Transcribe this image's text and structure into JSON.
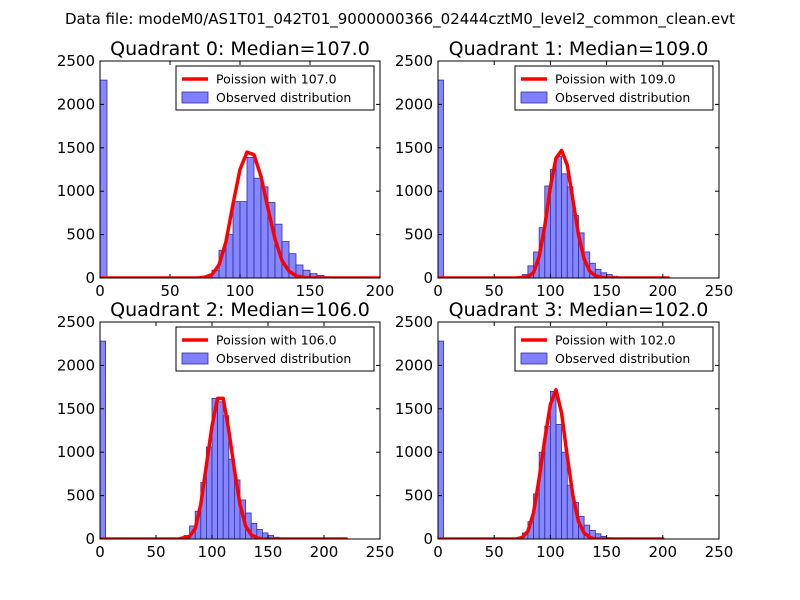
{
  "figure_title": "Data file: modeM0/AS1T01_042T01_9000000366_02444cztM0_level2_common_clean.evt",
  "colors": {
    "hist_fill": "#7f7fff",
    "hist_edge": "#2f2f9f",
    "poisson_line": "#ff0000",
    "axes": "#000000"
  },
  "chart_data": [
    {
      "type": "bar+line",
      "title": "Quadrant 0: Median=107.0",
      "xlim": [
        0,
        200
      ],
      "ylim": [
        0,
        2500
      ],
      "xticks": [
        0,
        50,
        100,
        150,
        200
      ],
      "yticks": [
        0,
        500,
        1000,
        1500,
        2000,
        2500
      ],
      "legend_location": "top-right",
      "legend": {
        "line_label": "Poission with 107.0",
        "hist_label": "Observed distribution"
      },
      "bin_width": 5,
      "bins": [
        {
          "x": 0,
          "y": 2280
        },
        {
          "x": 75,
          "y": 20
        },
        {
          "x": 80,
          "y": 90
        },
        {
          "x": 85,
          "y": 320
        },
        {
          "x": 90,
          "y": 500
        },
        {
          "x": 95,
          "y": 880
        },
        {
          "x": 100,
          "y": 880
        },
        {
          "x": 105,
          "y": 1390
        },
        {
          "x": 110,
          "y": 1150
        },
        {
          "x": 115,
          "y": 1050
        },
        {
          "x": 120,
          "y": 870
        },
        {
          "x": 125,
          "y": 620
        },
        {
          "x": 130,
          "y": 420
        },
        {
          "x": 135,
          "y": 280
        },
        {
          "x": 140,
          "y": 150
        },
        {
          "x": 145,
          "y": 90
        },
        {
          "x": 150,
          "y": 50
        },
        {
          "x": 155,
          "y": 30
        },
        {
          "x": 160,
          "y": 15
        },
        {
          "x": 165,
          "y": 8
        }
      ],
      "poisson": {
        "x": [
          0,
          70,
          75,
          80,
          85,
          90,
          95,
          100,
          105,
          110,
          115,
          120,
          125,
          130,
          135,
          140,
          145,
          150,
          200
        ],
        "y": [
          0,
          0,
          10,
          40,
          150,
          420,
          850,
          1250,
          1450,
          1420,
          1170,
          800,
          450,
          200,
          80,
          25,
          8,
          0,
          0
        ]
      }
    },
    {
      "type": "bar+line",
      "title": "Quadrant 1: Median=109.0",
      "xlim": [
        0,
        250
      ],
      "ylim": [
        0,
        2500
      ],
      "xticks": [
        0,
        50,
        100,
        150,
        200,
        250
      ],
      "yticks": [
        0,
        500,
        1000,
        1500,
        2000,
        2500
      ],
      "legend_location": "top-right",
      "legend": {
        "line_label": "Poission with 109.0",
        "hist_label": "Observed distribution"
      },
      "bin_width": 5,
      "bins": [
        {
          "x": 0,
          "y": 2280
        },
        {
          "x": 75,
          "y": 40
        },
        {
          "x": 80,
          "y": 140
        },
        {
          "x": 85,
          "y": 300
        },
        {
          "x": 90,
          "y": 580
        },
        {
          "x": 95,
          "y": 1060
        },
        {
          "x": 100,
          "y": 1250
        },
        {
          "x": 105,
          "y": 1400
        },
        {
          "x": 110,
          "y": 1200
        },
        {
          "x": 115,
          "y": 1050
        },
        {
          "x": 120,
          "y": 720
        },
        {
          "x": 125,
          "y": 520
        },
        {
          "x": 130,
          "y": 300
        },
        {
          "x": 135,
          "y": 170
        },
        {
          "x": 140,
          "y": 100
        },
        {
          "x": 145,
          "y": 60
        },
        {
          "x": 150,
          "y": 40
        },
        {
          "x": 155,
          "y": 20
        },
        {
          "x": 160,
          "y": 10
        }
      ],
      "poisson": {
        "x": [
          0,
          70,
          80,
          85,
          90,
          95,
          100,
          105,
          110,
          115,
          120,
          125,
          130,
          135,
          140,
          145,
          150,
          205
        ],
        "y": [
          0,
          0,
          15,
          60,
          250,
          600,
          1050,
          1380,
          1470,
          1300,
          900,
          500,
          220,
          80,
          25,
          8,
          0,
          0
        ]
      }
    },
    {
      "type": "bar+line",
      "title": "Quadrant 2: Median=106.0",
      "xlim": [
        0,
        250
      ],
      "ylim": [
        0,
        2500
      ],
      "xticks": [
        0,
        50,
        100,
        150,
        200,
        250
      ],
      "yticks": [
        0,
        500,
        1000,
        1500,
        2000,
        2500
      ],
      "legend_location": "top-right",
      "legend": {
        "line_label": "Poission with 106.0",
        "hist_label": "Observed distribution"
      },
      "bin_width": 5,
      "bins": [
        {
          "x": 0,
          "y": 2280
        },
        {
          "x": 75,
          "y": 40
        },
        {
          "x": 80,
          "y": 150
        },
        {
          "x": 85,
          "y": 320
        },
        {
          "x": 90,
          "y": 650
        },
        {
          "x": 95,
          "y": 1060
        },
        {
          "x": 100,
          "y": 1620
        },
        {
          "x": 105,
          "y": 1580
        },
        {
          "x": 110,
          "y": 1420
        },
        {
          "x": 115,
          "y": 920
        },
        {
          "x": 120,
          "y": 680
        },
        {
          "x": 125,
          "y": 450
        },
        {
          "x": 130,
          "y": 300
        },
        {
          "x": 135,
          "y": 180
        },
        {
          "x": 140,
          "y": 110
        },
        {
          "x": 145,
          "y": 70
        },
        {
          "x": 150,
          "y": 40
        },
        {
          "x": 155,
          "y": 20
        }
      ],
      "poisson": {
        "x": [
          0,
          70,
          80,
          85,
          90,
          95,
          100,
          105,
          110,
          115,
          120,
          125,
          130,
          135,
          140,
          145,
          220
        ],
        "y": [
          0,
          0,
          30,
          120,
          400,
          850,
          1300,
          1620,
          1620,
          1250,
          800,
          400,
          150,
          50,
          15,
          0,
          0
        ]
      }
    },
    {
      "type": "bar+line",
      "title": "Quadrant 3: Median=102.0",
      "xlim": [
        0,
        250
      ],
      "ylim": [
        0,
        2500
      ],
      "xticks": [
        0,
        50,
        100,
        150,
        200,
        250
      ],
      "yticks": [
        0,
        500,
        1000,
        1500,
        2000,
        2500
      ],
      "legend_location": "top-right",
      "legend": {
        "line_label": "Poission with 102.0",
        "hist_label": "Observed distribution"
      },
      "bin_width": 5,
      "bins": [
        {
          "x": 0,
          "y": 2280
        },
        {
          "x": 70,
          "y": 20
        },
        {
          "x": 75,
          "y": 70
        },
        {
          "x": 80,
          "y": 200
        },
        {
          "x": 85,
          "y": 520
        },
        {
          "x": 90,
          "y": 1000
        },
        {
          "x": 95,
          "y": 1300
        },
        {
          "x": 100,
          "y": 1700
        },
        {
          "x": 105,
          "y": 1320
        },
        {
          "x": 110,
          "y": 1000
        },
        {
          "x": 115,
          "y": 620
        },
        {
          "x": 120,
          "y": 420
        },
        {
          "x": 125,
          "y": 260
        },
        {
          "x": 130,
          "y": 160
        },
        {
          "x": 135,
          "y": 100
        },
        {
          "x": 140,
          "y": 60
        },
        {
          "x": 145,
          "y": 30
        },
        {
          "x": 150,
          "y": 15
        }
      ],
      "poisson": {
        "x": [
          0,
          70,
          75,
          80,
          85,
          90,
          95,
          100,
          105,
          110,
          115,
          120,
          125,
          130,
          135,
          140,
          200
        ],
        "y": [
          0,
          0,
          20,
          90,
          300,
          700,
          1150,
          1550,
          1720,
          1450,
          950,
          500,
          200,
          70,
          20,
          0,
          0
        ]
      }
    }
  ]
}
